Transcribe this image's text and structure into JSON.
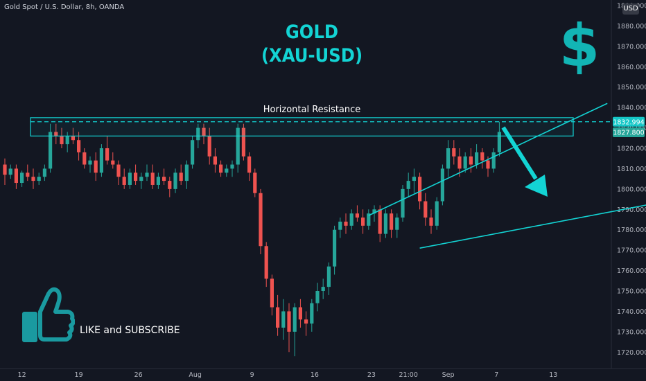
{
  "header": {
    "symbol_text": "Gold Spot / U.S. Dollar, 8h, OANDA",
    "currency_badge": "USD"
  },
  "overlay": {
    "title_line1": "GOLD",
    "title_line2": "(XAU-USD)",
    "dollar_symbol": "$",
    "resistance_label": "Horizontal Resistance",
    "like_text": "LIKE and SUBSCRIBE",
    "accent_color": "#13d4d4"
  },
  "price_labels": {
    "current": {
      "value": 1832.994,
      "text": "1832.994",
      "color": "#15c7c7"
    },
    "last": {
      "value": 1827.8,
      "text": "1827.800",
      "color": "#26a69a"
    }
  },
  "chart_data": {
    "type": "candlestick",
    "ylim": [
      1715,
      1890
    ],
    "yticks": [
      1720,
      1730,
      1740,
      1750,
      1760,
      1770,
      1780,
      1790,
      1800,
      1810,
      1820,
      1830,
      1840,
      1850,
      1860,
      1870,
      1880,
      1890
    ],
    "ytick_labels": [
      "1720.000",
      "1730.000",
      "1740.000",
      "1750.000",
      "1760.000",
      "1770.000",
      "1780.000",
      "1790.000",
      "1800.000",
      "1810.000",
      "1820.000",
      "1830.000",
      "1840.000",
      "1850.000",
      "1860.000",
      "1870.000",
      "1880.000",
      "1890.000"
    ],
    "xticks": [
      {
        "label": "12",
        "bar": 3
      },
      {
        "label": "19",
        "bar": 13
      },
      {
        "label": "26",
        "bar": 23.5
      },
      {
        "label": "Aug",
        "bar": 33.5
      },
      {
        "label": "9",
        "bar": 43.5
      },
      {
        "label": "16",
        "bar": 54.5
      },
      {
        "label": "23",
        "bar": 64.5
      },
      {
        "label": "21:00",
        "bar": 71
      },
      {
        "label": "Sep",
        "bar": 78
      },
      {
        "label": "7",
        "bar": 86.5
      },
      {
        "label": "13",
        "bar": 96.5
      }
    ],
    "bars_visible": 108,
    "candles": [
      [
        1812,
        1815,
        1802,
        1807
      ],
      [
        1807,
        1812,
        1805,
        1810
      ],
      [
        1810,
        1812,
        1800,
        1803
      ],
      [
        1803,
        1809,
        1801,
        1808
      ],
      [
        1808,
        1812,
        1804,
        1806
      ],
      [
        1806,
        1810,
        1800,
        1804
      ],
      [
        1804,
        1808,
        1802,
        1806
      ],
      [
        1806,
        1812,
        1804,
        1810
      ],
      [
        1810,
        1832,
        1808,
        1828
      ],
      [
        1828,
        1832,
        1822,
        1826
      ],
      [
        1826,
        1830,
        1820,
        1822
      ],
      [
        1822,
        1828,
        1818,
        1826
      ],
      [
        1826,
        1830,
        1822,
        1824
      ],
      [
        1824,
        1828,
        1814,
        1818
      ],
      [
        1818,
        1820,
        1810,
        1812
      ],
      [
        1812,
        1816,
        1808,
        1814
      ],
      [
        1814,
        1818,
        1804,
        1808
      ],
      [
        1808,
        1822,
        1806,
        1820
      ],
      [
        1820,
        1826,
        1812,
        1814
      ],
      [
        1814,
        1818,
        1810,
        1812
      ],
      [
        1812,
        1814,
        1802,
        1806
      ],
      [
        1806,
        1810,
        1800,
        1802
      ],
      [
        1802,
        1810,
        1800,
        1808
      ],
      [
        1808,
        1812,
        1802,
        1804
      ],
      [
        1804,
        1808,
        1800,
        1806
      ],
      [
        1806,
        1812,
        1804,
        1808
      ],
      [
        1808,
        1812,
        1800,
        1802
      ],
      [
        1802,
        1808,
        1800,
        1806
      ],
      [
        1806,
        1810,
        1802,
        1804
      ],
      [
        1804,
        1806,
        1796,
        1800
      ],
      [
        1800,
        1810,
        1798,
        1808
      ],
      [
        1808,
        1812,
        1802,
        1804
      ],
      [
        1804,
        1814,
        1800,
        1812
      ],
      [
        1812,
        1826,
        1810,
        1824
      ],
      [
        1824,
        1832,
        1820,
        1830
      ],
      [
        1830,
        1832,
        1822,
        1826
      ],
      [
        1826,
        1830,
        1812,
        1816
      ],
      [
        1816,
        1820,
        1808,
        1812
      ],
      [
        1812,
        1814,
        1806,
        1808
      ],
      [
        1808,
        1812,
        1806,
        1810
      ],
      [
        1810,
        1814,
        1806,
        1812
      ],
      [
        1812,
        1832,
        1808,
        1830
      ],
      [
        1830,
        1832,
        1814,
        1816
      ],
      [
        1816,
        1818,
        1804,
        1808
      ],
      [
        1808,
        1810,
        1796,
        1798
      ],
      [
        1798,
        1800,
        1768,
        1772
      ],
      [
        1772,
        1774,
        1752,
        1756
      ],
      [
        1756,
        1758,
        1738,
        1742
      ],
      [
        1742,
        1748,
        1728,
        1732
      ],
      [
        1732,
        1746,
        1726,
        1740
      ],
      [
        1740,
        1744,
        1720,
        1730
      ],
      [
        1730,
        1744,
        1718,
        1742
      ],
      [
        1742,
        1746,
        1732,
        1736
      ],
      [
        1736,
        1740,
        1728,
        1734
      ],
      [
        1734,
        1746,
        1730,
        1744
      ],
      [
        1744,
        1754,
        1740,
        1750
      ],
      [
        1750,
        1756,
        1746,
        1752
      ],
      [
        1752,
        1764,
        1748,
        1762
      ],
      [
        1762,
        1782,
        1758,
        1780
      ],
      [
        1780,
        1786,
        1776,
        1784
      ],
      [
        1784,
        1788,
        1778,
        1782
      ],
      [
        1782,
        1790,
        1780,
        1788
      ],
      [
        1788,
        1792,
        1784,
        1786
      ],
      [
        1786,
        1790,
        1778,
        1782
      ],
      [
        1782,
        1790,
        1780,
        1788
      ],
      [
        1788,
        1792,
        1784,
        1790
      ],
      [
        1790,
        1792,
        1774,
        1778
      ],
      [
        1778,
        1790,
        1776,
        1788
      ],
      [
        1788,
        1790,
        1776,
        1780
      ],
      [
        1780,
        1788,
        1776,
        1786
      ],
      [
        1786,
        1802,
        1784,
        1800
      ],
      [
        1800,
        1808,
        1796,
        1804
      ],
      [
        1804,
        1810,
        1798,
        1806
      ],
      [
        1806,
        1808,
        1790,
        1794
      ],
      [
        1794,
        1798,
        1782,
        1786
      ],
      [
        1786,
        1790,
        1778,
        1782
      ],
      [
        1782,
        1796,
        1780,
        1794
      ],
      [
        1794,
        1812,
        1792,
        1810
      ],
      [
        1810,
        1824,
        1806,
        1820
      ],
      [
        1820,
        1824,
        1812,
        1816
      ],
      [
        1816,
        1820,
        1806,
        1810
      ],
      [
        1810,
        1818,
        1808,
        1816
      ],
      [
        1816,
        1820,
        1808,
        1812
      ],
      [
        1812,
        1822,
        1810,
        1818
      ],
      [
        1818,
        1820,
        1810,
        1814
      ],
      [
        1814,
        1816,
        1806,
        1810
      ],
      [
        1810,
        1820,
        1808,
        1818
      ],
      [
        1818,
        1833,
        1816,
        1828
      ]
    ],
    "resistance_zone": [
      1826,
      1835
    ],
    "resistance_level": 1832.994,
    "wedge_upper": [
      [
        64,
        1787
      ],
      [
        106,
        1842
      ]
    ],
    "wedge_lower": [
      [
        73,
        1771
      ],
      [
        122,
        1797
      ]
    ]
  }
}
